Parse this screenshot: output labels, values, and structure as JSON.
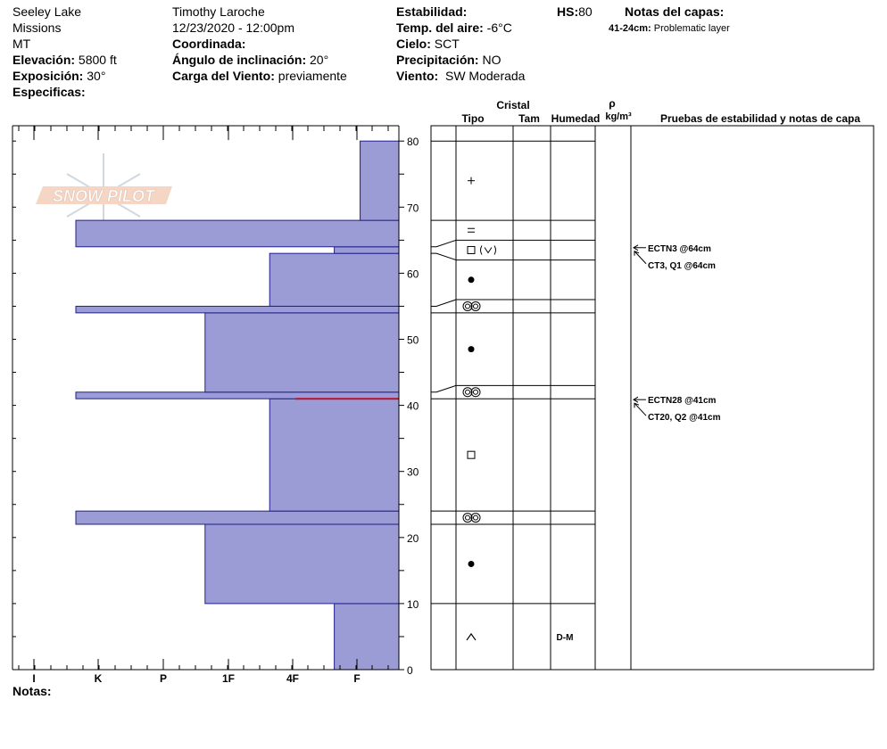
{
  "header": {
    "location": [
      "Seeley Lake",
      "Missions",
      "MT"
    ],
    "elevation_label": "Elevación:",
    "elevation": "5800 ft",
    "exposure_label": "Exposición:",
    "exposure": "30°",
    "specifics_label": "Especificas:",
    "observer": "Timothy  Laroche",
    "datetime": "12/23/2020 - 12:00pm",
    "coordinates_label": "Coordinada:",
    "slope_label": "Ángulo de inclinación:",
    "slope": "20°",
    "wind_load_label": "Carga del Viento:",
    "wind_load": "previamente",
    "stability_label": "Estabilidad:",
    "air_temp_label": "Temp. del aire:",
    "air_temp": "-6°C",
    "sky_label": "Cielo:",
    "sky": "SCT",
    "precip_label": "Precipitación:",
    "precip": "NO",
    "wind_label": "Viento:",
    "wind": "SW Moderada",
    "hs_label": "HS:",
    "hs": "80",
    "layer_notes_title": "Notas del capas:",
    "layer_note_range": "41-24cm:",
    "layer_note_text": "Problematic layer"
  },
  "columns": {
    "cristal": "Cristal",
    "tipo": "Tipo",
    "tam": "Tam",
    "humedad": "Humedad",
    "rho": "ρ",
    "density_unit": "kg/m³",
    "tests": "Pruebas de estabilidad y notas de capa"
  },
  "watermark": "SNOW PILOT",
  "notes_label": "Notas:",
  "chart_data": {
    "type": "bar",
    "title": "",
    "orientation": "horizontal",
    "x_label": "",
    "hardness_ticks": [
      "I",
      "K",
      "P",
      "1F",
      "4F",
      "F"
    ],
    "y_ticks": [
      0,
      10,
      20,
      30,
      40,
      50,
      60,
      70,
      80
    ],
    "ylim": [
      0,
      80
    ],
    "grid": false,
    "layers": [
      {
        "bottom": 0,
        "top": 10,
        "hardness_level": 1
      },
      {
        "bottom": 10,
        "top": 22,
        "hardness_level": 3
      },
      {
        "bottom": 22,
        "top": 24,
        "hardness_level": 5
      },
      {
        "bottom": 24,
        "top": 41,
        "hardness_level": 2
      },
      {
        "bottom": 41,
        "top": 42,
        "hardness_level": 5
      },
      {
        "bottom": 42,
        "top": 54,
        "hardness_level": 3
      },
      {
        "bottom": 54,
        "top": 55,
        "hardness_level": 5
      },
      {
        "bottom": 55,
        "top": 63,
        "hardness_level": 2
      },
      {
        "bottom": 63,
        "top": 64,
        "hardness_level": 1
      },
      {
        "bottom": 64,
        "top": 68,
        "hardness_level": 5
      },
      {
        "bottom": 68,
        "top": 80,
        "hardness_level": 0.6
      }
    ],
    "failure_line": 41,
    "profile_layers": [
      {
        "bottom": 0,
        "top": 10,
        "grain": "depth-hoar",
        "moisture": "D-M"
      },
      {
        "bottom": 10,
        "top": 22,
        "grain": "rounded",
        "moisture": ""
      },
      {
        "bottom": 22,
        "top": 24,
        "grain": "surface-hoar",
        "moisture": ""
      },
      {
        "bottom": 24,
        "top": 41,
        "grain": "faceted",
        "moisture": ""
      },
      {
        "bottom": 41,
        "top": 43,
        "grain": "surface-hoar",
        "moisture": ""
      },
      {
        "bottom": 43,
        "top": 54,
        "grain": "rounded",
        "moisture": ""
      },
      {
        "bottom": 54,
        "top": 56,
        "grain": "surface-hoar",
        "moisture": ""
      },
      {
        "bottom": 56,
        "top": 62,
        "grain": "rounded",
        "moisture": ""
      },
      {
        "bottom": 62,
        "top": 65,
        "grain": "faceted-with-depth-hoar",
        "moisture": ""
      },
      {
        "bottom": 65,
        "top": 68,
        "grain": "decomposed",
        "moisture": ""
      },
      {
        "bottom": 68,
        "top": 80,
        "grain": "new-snow",
        "moisture": ""
      }
    ],
    "stability_tests": [
      {
        "depth": 64,
        "lines": [
          "ECTN3 @64cm",
          "CT3, Q1 @64cm"
        ]
      },
      {
        "depth": 41,
        "lines": [
          "ECTN28 @41cm",
          "CT20, Q2 @41cm"
        ]
      }
    ]
  }
}
